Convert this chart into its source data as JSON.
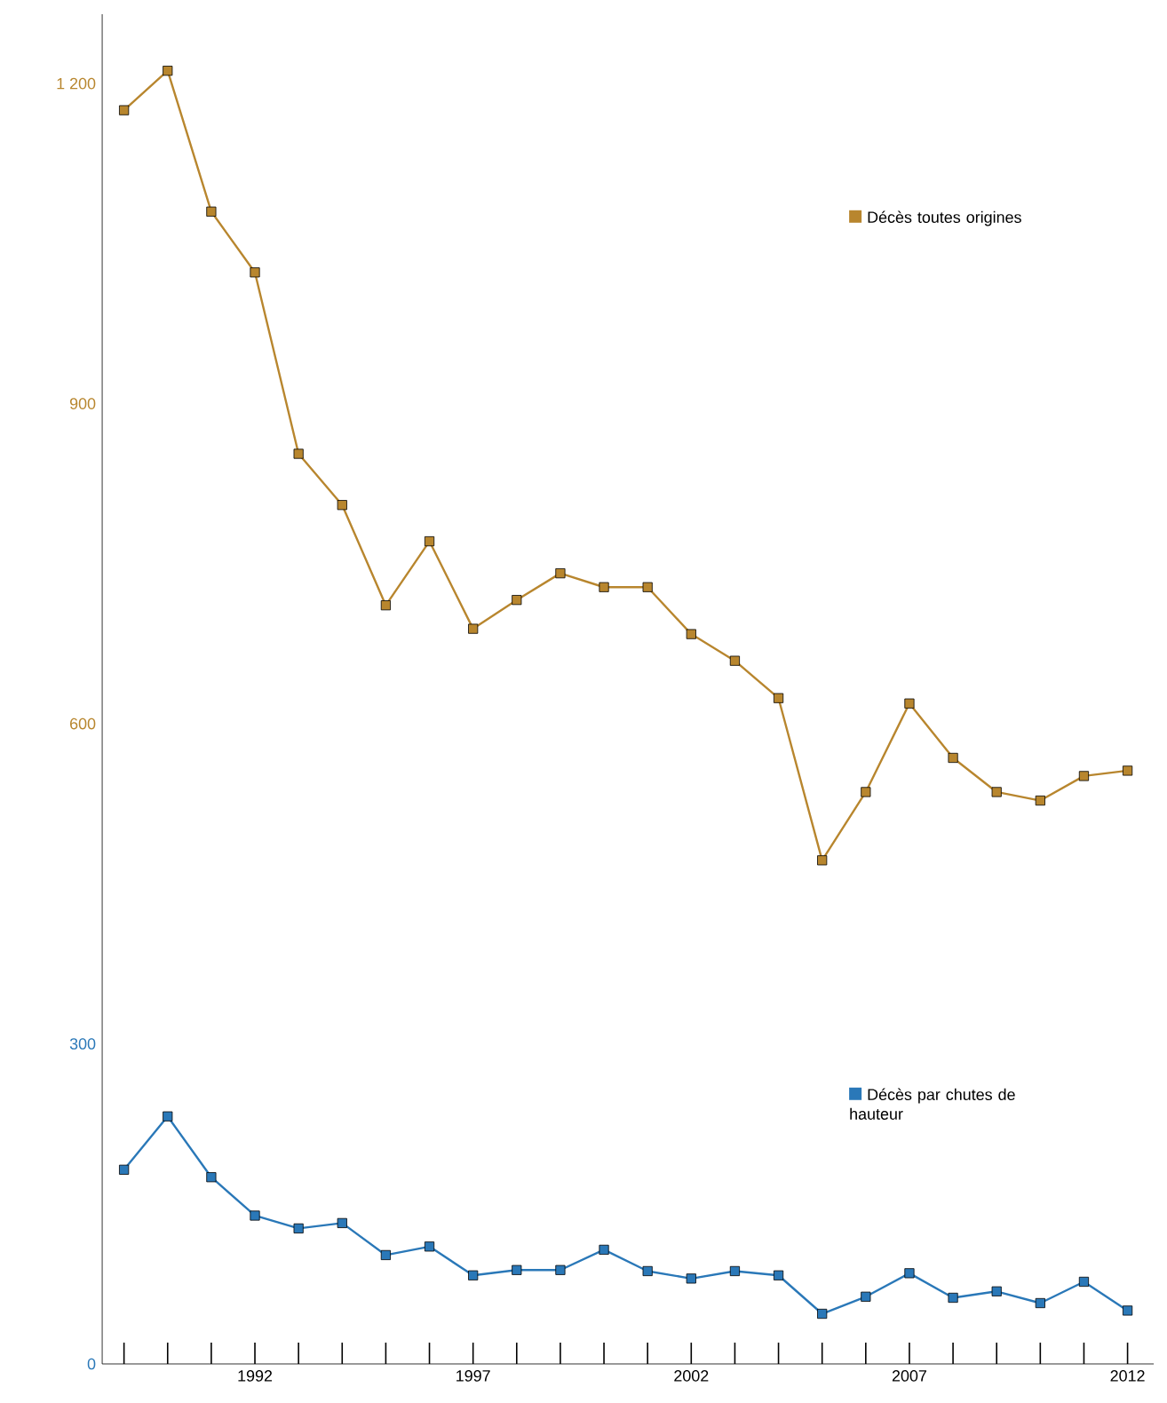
{
  "chart_data": {
    "type": "line",
    "x": [
      1989,
      1990,
      1991,
      1992,
      1993,
      1994,
      1995,
      1996,
      1997,
      1998,
      1999,
      2000,
      2001,
      2002,
      2003,
      2004,
      2005,
      2006,
      2007,
      2008,
      2009,
      2010,
      2011,
      2012
    ],
    "series": [
      {
        "name": "Décès toutes origines",
        "color": "#b8862e",
        "values": [
          1175,
          1212,
          1080,
          1023,
          853,
          805,
          711,
          771,
          689,
          716,
          741,
          728,
          728,
          684,
          659,
          624,
          472,
          536,
          619,
          568,
          536,
          528,
          551,
          556
        ]
      },
      {
        "name": "Décès par chutes de hauteur",
        "color": "#2a78b8",
        "values": [
          182,
          232,
          175,
          139,
          127,
          132,
          102,
          110,
          83,
          88,
          88,
          107,
          87,
          80,
          87,
          83,
          47,
          63,
          85,
          62,
          68,
          57,
          77,
          50
        ]
      }
    ],
    "xlim": [
      1988.5,
      2012.6
    ],
    "ylim": [
      0,
      1265
    ],
    "xticks": [
      {
        "value": 1989,
        "label": null
      },
      {
        "value": 1990,
        "label": null
      },
      {
        "value": 1991,
        "label": null
      },
      1992,
      {
        "value": 1993,
        "label": null
      },
      {
        "value": 1994,
        "label": null
      },
      {
        "value": 1995,
        "label": null
      },
      {
        "value": 1996,
        "label": null
      },
      1997,
      {
        "value": 1998,
        "label": null
      },
      {
        "value": 1999,
        "label": null
      },
      {
        "value": 2000,
        "label": null
      },
      {
        "value": 2001,
        "label": null
      },
      2002,
      {
        "value": 2003,
        "label": null
      },
      {
        "value": 2004,
        "label": null
      },
      {
        "value": 2005,
        "label": null
      },
      {
        "value": 2006,
        "label": null
      },
      2007,
      {
        "value": 2008,
        "label": null
      },
      {
        "value": 2009,
        "label": null
      },
      {
        "value": 2010,
        "label": null
      },
      {
        "value": 2011,
        "label": null
      },
      2012
    ],
    "yticks": [
      0,
      300,
      600,
      900,
      {
        "value": 1200,
        "label": "1 200"
      }
    ],
    "legend": "right",
    "marker": "square",
    "line_style": "solid",
    "grid": false
  }
}
